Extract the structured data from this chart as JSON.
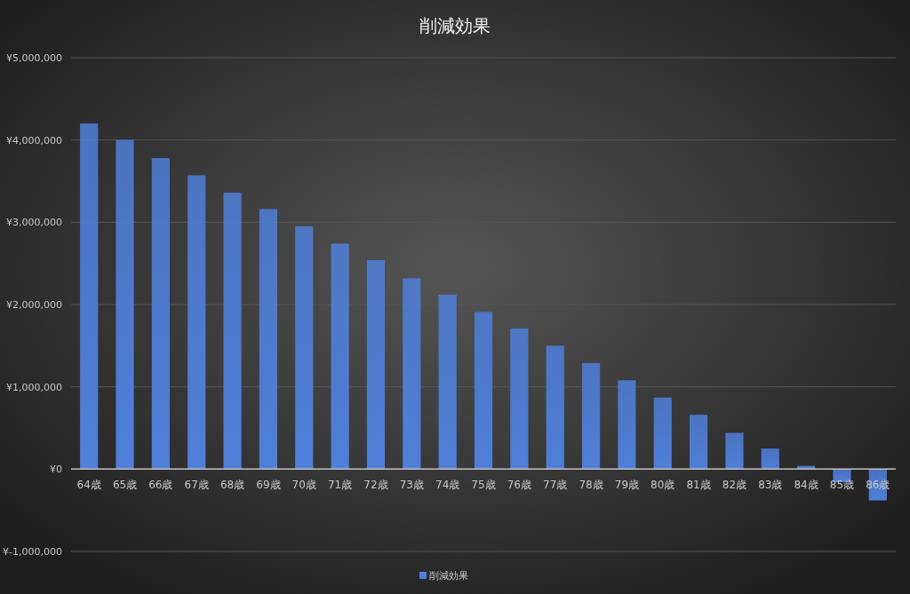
{
  "chart_data": {
    "type": "bar",
    "title": "削減効果",
    "categories": [
      "64歳",
      "65歳",
      "66歳",
      "67歳",
      "68歳",
      "69歳",
      "70歳",
      "71歳",
      "72歳",
      "73歳",
      "74歳",
      "75歳",
      "76歳",
      "77歳",
      "78歳",
      "79歳",
      "80歳",
      "81歳",
      "82歳",
      "83歳",
      "84歳",
      "85歳",
      "86歳"
    ],
    "series": [
      {
        "name": "削減効果",
        "color": "#4f7fd9",
        "values": [
          4200000,
          4000000,
          3780000,
          3570000,
          3360000,
          3160000,
          2950000,
          2740000,
          2540000,
          2320000,
          2120000,
          1910000,
          1710000,
          1500000,
          1290000,
          1080000,
          870000,
          660000,
          440000,
          250000,
          40000,
          -160000,
          -380000
        ]
      }
    ],
    "ylim": [
      -1000000,
      5000000
    ],
    "yticks": [
      {
        "value": -1000000,
        "label": "¥-1,000,000"
      },
      {
        "value": 0,
        "label": "¥0"
      },
      {
        "value": 1000000,
        "label": "¥1,000,000"
      },
      {
        "value": 2000000,
        "label": "¥2,000,000"
      },
      {
        "value": 3000000,
        "label": "¥3,000,000"
      },
      {
        "value": 4000000,
        "label": "¥4,000,000"
      },
      {
        "value": 5000000,
        "label": "¥5,000,000"
      }
    ],
    "grid": "y",
    "legend": "bottom"
  }
}
